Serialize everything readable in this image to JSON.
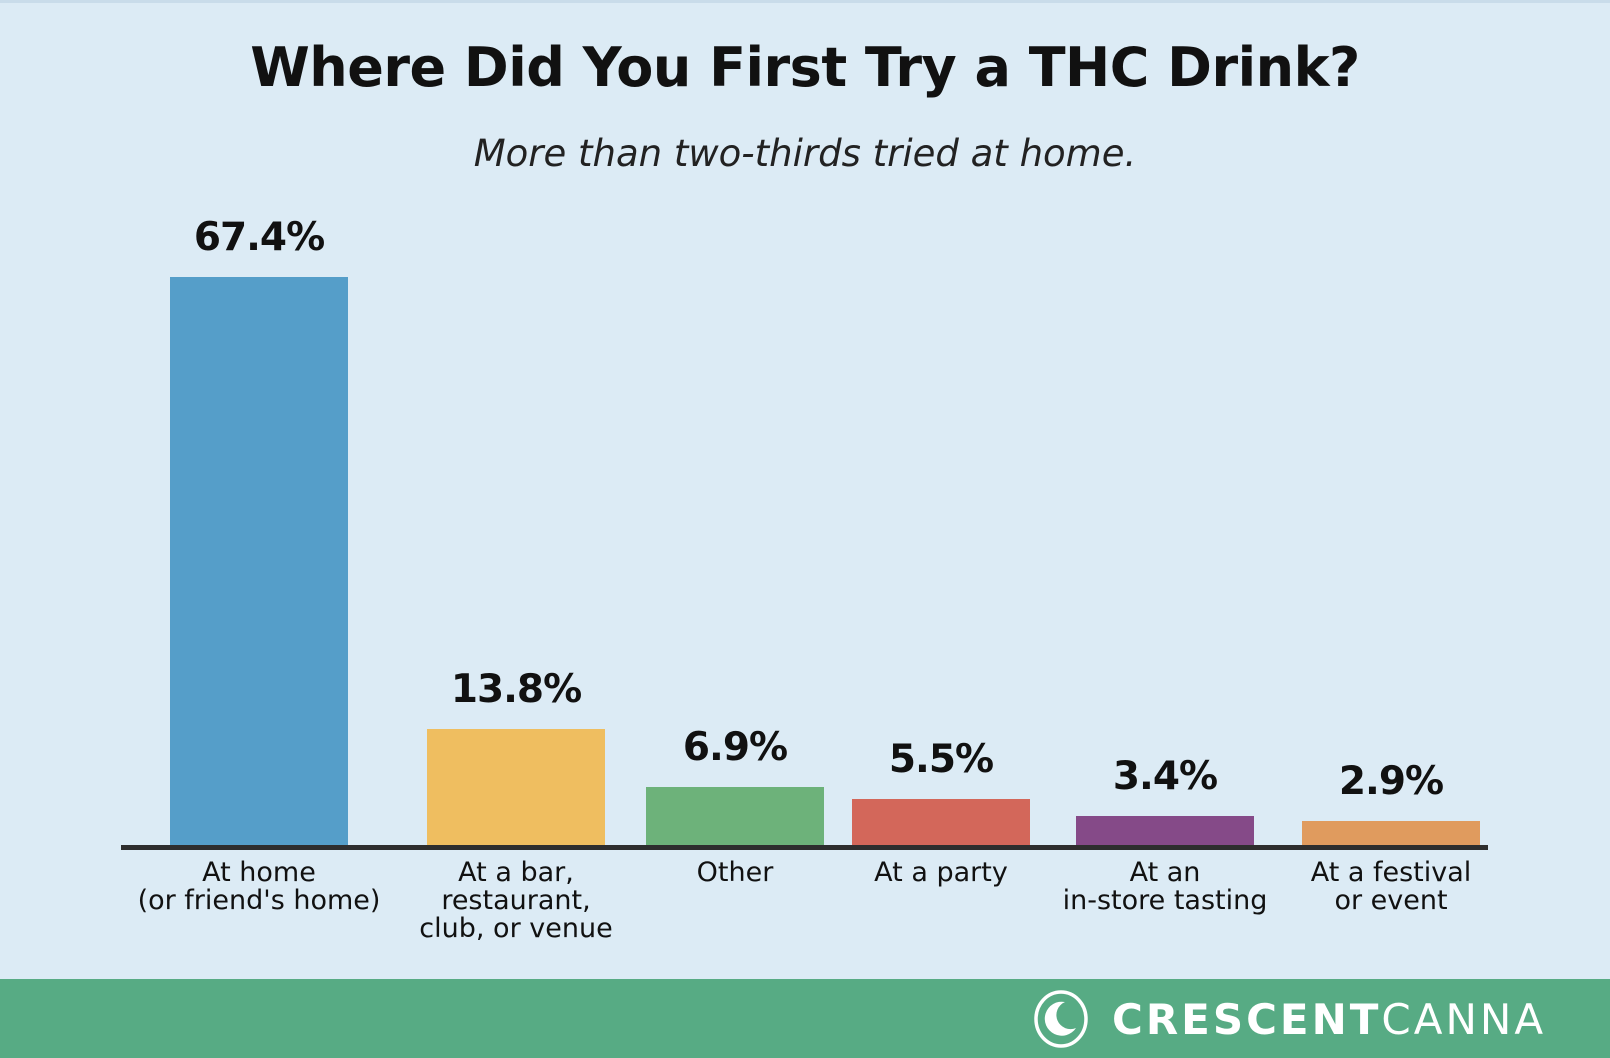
{
  "chart_data": {
    "type": "bar",
    "title": "Where Did You First Try a THC Drink?",
    "subtitle": "More than two-thirds tried at home.",
    "xlabel": "",
    "ylabel": "",
    "ylim": [
      0,
      70
    ],
    "grid": false,
    "legend": "none",
    "categories": [
      "At home\n(or friend's home)",
      "At a bar,\nrestaurant,\nclub, or venue",
      "Other",
      "At a party",
      "At an\nin-store tasting",
      "At a festival\nor event"
    ],
    "values": [
      67.4,
      13.8,
      6.9,
      5.5,
      3.4,
      2.9
    ],
    "value_labels": [
      "67.4%",
      "13.8%",
      "6.9%",
      "5.5%",
      "3.4%",
      "2.9%"
    ],
    "colors": [
      "#559ec9",
      "#efbe60",
      "#6db27a",
      "#d3675a",
      "#854a88",
      "#e09b5e"
    ]
  },
  "header": {
    "title": "Where Did You First Try a THC Drink?",
    "subtitle": "More than two-thirds tried at home."
  },
  "footer": {
    "brand_bold": "CRESCENT",
    "brand_light": "CANNA",
    "logo_icon": "crescent-moon-icon",
    "color": "#57ab84"
  }
}
